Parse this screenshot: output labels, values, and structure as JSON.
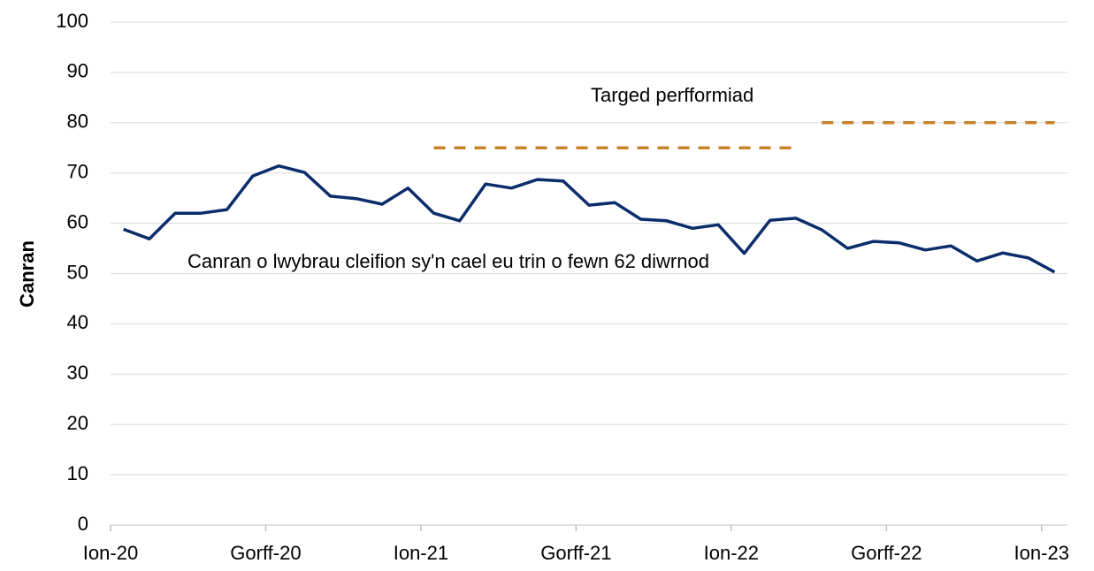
{
  "chart_data": {
    "type": "line",
    "y_label": "Canran",
    "categories": [
      "Ion-20",
      null,
      null,
      null,
      null,
      null,
      "Gorff-20",
      null,
      null,
      null,
      null,
      null,
      "Ion-21",
      null,
      null,
      null,
      null,
      null,
      "Gorff-21",
      null,
      null,
      null,
      null,
      null,
      "Ion-22",
      null,
      null,
      null,
      null,
      null,
      "Gorff-22",
      null,
      null,
      null,
      null,
      null,
      "Ion-23"
    ],
    "series": [
      {
        "name": "Canran o lwybrau cleifion sy'n cael eu trin o fewn 62 diwrnod",
        "color": "#0b2d6b",
        "dashed": false,
        "values": [
          58.8,
          56.9,
          62.0,
          62.0,
          62.7,
          69.4,
          71.4,
          70.1,
          65.4,
          64.9,
          63.8,
          67.0,
          62.0,
          60.5,
          67.8,
          67.0,
          68.7,
          68.4,
          63.6,
          64.1,
          60.8,
          60.5,
          59.0,
          59.7,
          54.0,
          60.6,
          61.0,
          58.7,
          55.0,
          56.4,
          56.1,
          54.7,
          55.5,
          52.5,
          54.1,
          53.1,
          50.3
        ]
      },
      {
        "name": "Targed perfformiad",
        "color": "#c8822a",
        "dashed": true,
        "values": [
          null,
          null,
          null,
          null,
          null,
          null,
          null,
          null,
          null,
          null,
          null,
          null,
          75,
          75,
          75,
          75,
          75,
          75,
          75,
          75,
          75,
          75,
          75,
          75,
          75,
          75,
          75,
          null,
          null,
          null,
          null,
          null,
          null,
          null,
          null,
          null,
          null
        ]
      },
      {
        "color": "#c8822a",
        "dashed": true,
        "values": [
          null,
          null,
          null,
          null,
          null,
          null,
          null,
          null,
          null,
          null,
          null,
          null,
          null,
          null,
          null,
          null,
          null,
          null,
          null,
          null,
          null,
          null,
          null,
          null,
          null,
          null,
          null,
          80,
          80,
          80,
          80,
          80,
          80,
          80,
          80,
          80,
          80
        ]
      }
    ],
    "ylim": [
      0,
      100
    ],
    "yticks": [
      0,
      10,
      20,
      30,
      40,
      50,
      60,
      70,
      80,
      90,
      100
    ],
    "grid": true
  }
}
